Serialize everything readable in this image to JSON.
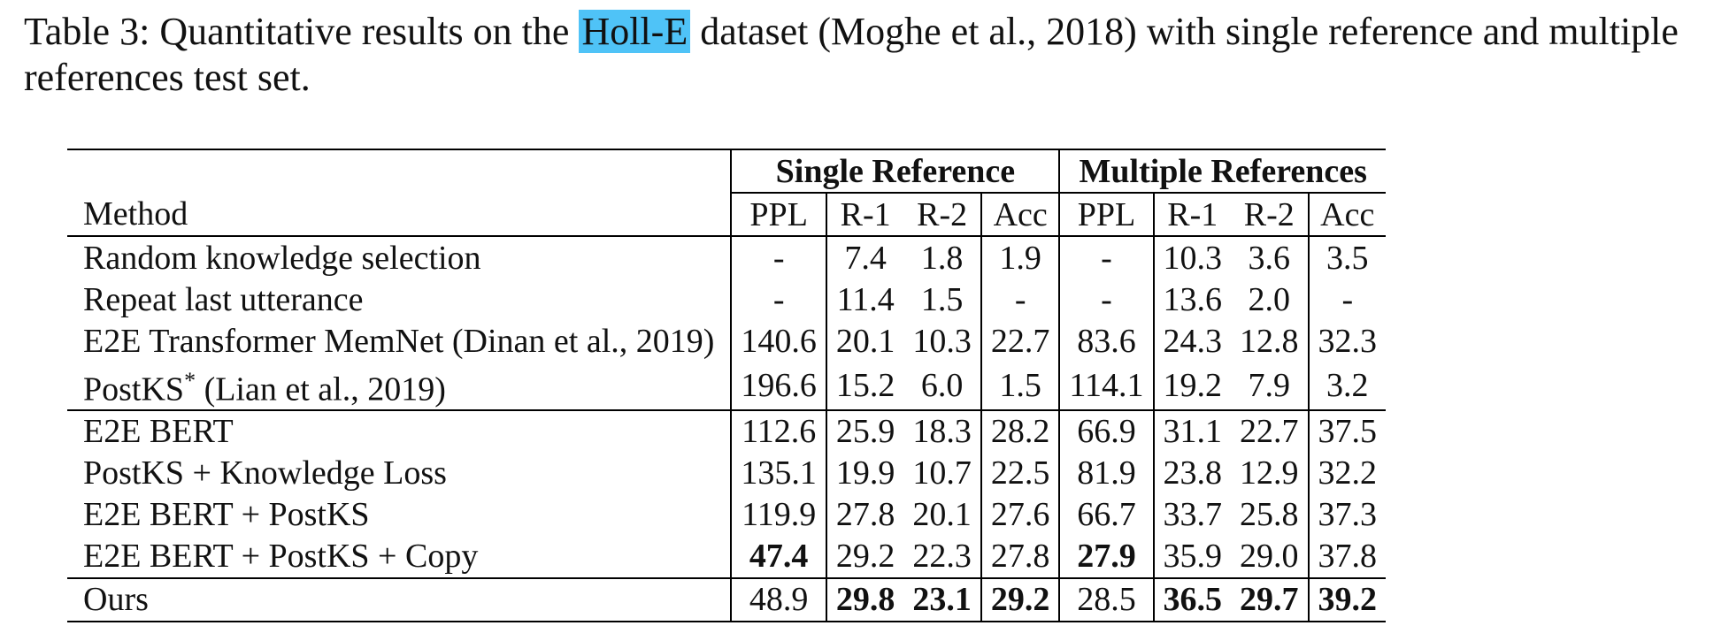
{
  "caption": {
    "prefix": "Table 3: Quantitative results on the",
    "highlight": "Holl-E",
    "suffix": "dataset (Moghe et al., 2018) with single reference and multiple references test set."
  },
  "table": {
    "group_headers": [
      "Single Reference",
      "Multiple References"
    ],
    "method_header": "Method",
    "col_headers": [
      "PPL",
      "R-1",
      "R-2",
      "Acc",
      "PPL",
      "R-1",
      "R-2",
      "Acc"
    ],
    "rows": [
      {
        "method": "Random knowledge selection",
        "values": [
          "-",
          "7.4",
          "1.8",
          "1.9",
          "-",
          "10.3",
          "3.6",
          "3.5"
        ]
      },
      {
        "method": "Repeat last utterance",
        "values": [
          "-",
          "11.4",
          "1.5",
          "-",
          "-",
          "13.6",
          "2.0",
          "-"
        ]
      },
      {
        "method": "E2E Transformer MemNet (Dinan et al., 2019)",
        "values": [
          "140.6",
          "20.1",
          "10.3",
          "22.7",
          "83.6",
          "24.3",
          "12.8",
          "32.3"
        ]
      },
      {
        "method": "PostKS",
        "method_sup": "*",
        "method_suffix": " (Lian et al., 2019)",
        "values": [
          "196.6",
          "15.2",
          "6.0",
          "1.5",
          "114.1",
          "19.2",
          "7.9",
          "3.2"
        ]
      },
      {
        "method": "E2E BERT",
        "values": [
          "112.6",
          "25.9",
          "18.3",
          "28.2",
          "66.9",
          "31.1",
          "22.7",
          "37.5"
        ]
      },
      {
        "method": "PostKS + Knowledge Loss",
        "values": [
          "135.1",
          "19.9",
          "10.7",
          "22.5",
          "81.9",
          "23.8",
          "12.9",
          "32.2"
        ]
      },
      {
        "method": "E2E BERT + PostKS",
        "values": [
          "119.9",
          "27.8",
          "20.1",
          "27.6",
          "66.7",
          "33.7",
          "25.8",
          "37.3"
        ]
      },
      {
        "method": "E2E BERT + PostKS + Copy",
        "values": [
          "47.4",
          "29.2",
          "22.3",
          "27.8",
          "27.9",
          "35.9",
          "29.0",
          "37.8"
        ]
      },
      {
        "method": "Ours",
        "values": [
          "48.9",
          "29.8",
          "23.1",
          "29.2",
          "28.5",
          "36.5",
          "29.7",
          "39.2"
        ]
      }
    ]
  }
}
